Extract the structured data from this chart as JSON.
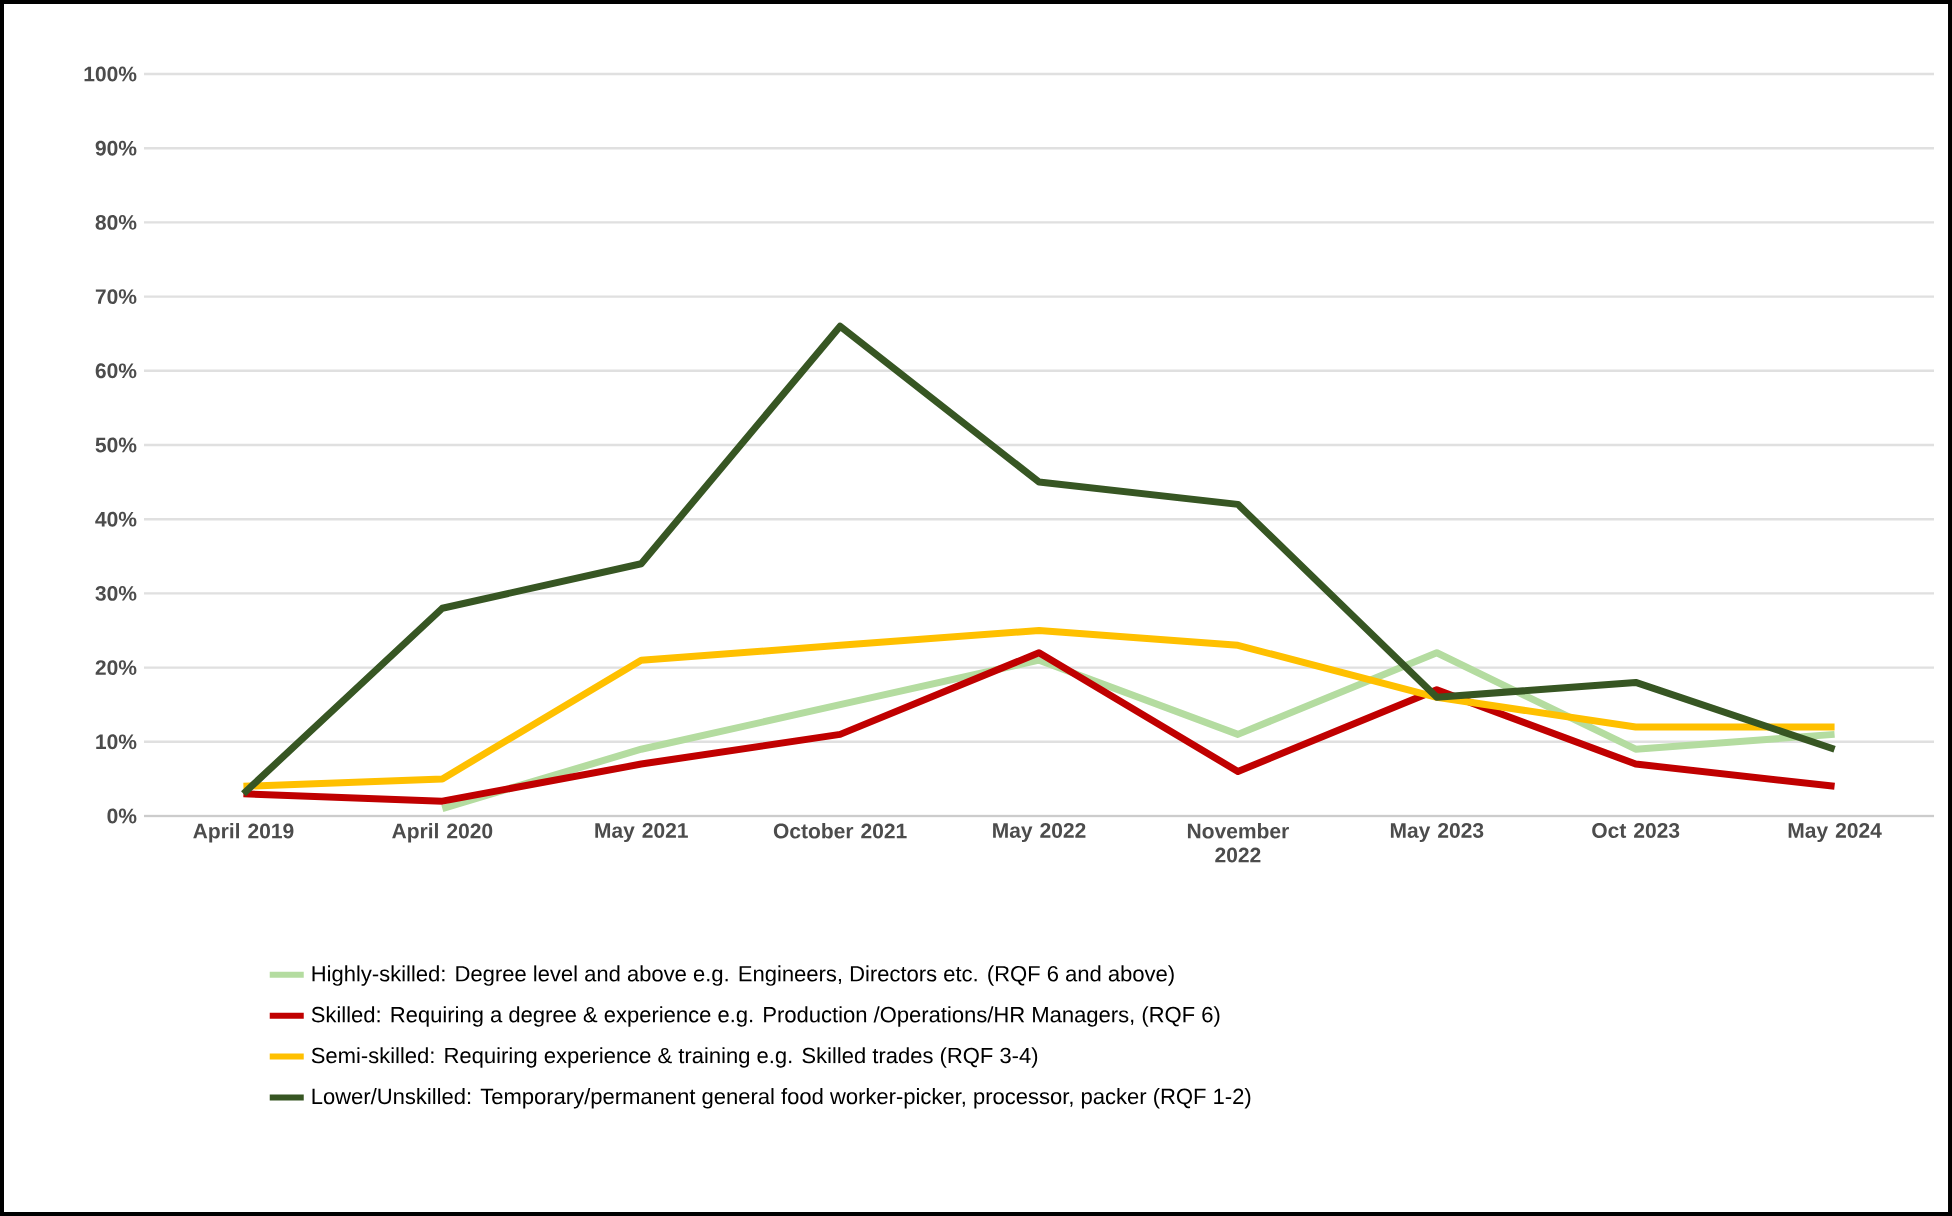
{
  "chart_data": {
    "type": "line",
    "categories": [
      "April 2019",
      "April 2020",
      "May 2021",
      "October 2021",
      "May 2022",
      "November 2022",
      "May 2023",
      "Oct 2023",
      "May 2024"
    ],
    "series": [
      {
        "name": "Highly-skilled: Degree level and above e.g. Engineers, Directors etc. (RQF 6 and above)",
        "color": "#b4dca0",
        "values": [
          null,
          1,
          9,
          15,
          21,
          11,
          22,
          9,
          11
        ]
      },
      {
        "name": "Skilled: Requiring a degree & experience e.g. Production /Operations/HR Managers, (RQF 6)",
        "color": "#c00000",
        "values": [
          3,
          2,
          7,
          11,
          22,
          6,
          17,
          7,
          4
        ]
      },
      {
        "name": "Semi-skilled: Requiring experience & training e.g. Skilled trades (RQF 3-4)",
        "color": "#ffc000",
        "values": [
          4,
          5,
          21,
          23,
          25,
          23,
          16,
          12,
          12
        ]
      },
      {
        "name": "Lower/Unskilled: Temporary/permanent general food worker-picker, processor, packer (RQF 1-2)",
        "color": "#375623",
        "values": [
          3,
          28,
          34,
          66,
          45,
          42,
          16,
          18,
          9
        ]
      }
    ],
    "ylim": [
      0,
      100
    ],
    "yticks": [
      {
        "value": 0,
        "label": "0%"
      },
      {
        "value": 10,
        "label": "10%"
      },
      {
        "value": 20,
        "label": "20%"
      },
      {
        "value": 30,
        "label": "30%"
      },
      {
        "value": 40,
        "label": "40%"
      },
      {
        "value": 50,
        "label": "50%"
      },
      {
        "value": 60,
        "label": "60%"
      },
      {
        "value": 70,
        "label": "70%"
      },
      {
        "value": 80,
        "label": "80%"
      },
      {
        "value": 90,
        "label": "90%"
      },
      {
        "value": 100,
        "label": "100%"
      }
    ],
    "grid": "y",
    "legend": "bottom",
    "marker": "none",
    "line_style": "solid"
  }
}
